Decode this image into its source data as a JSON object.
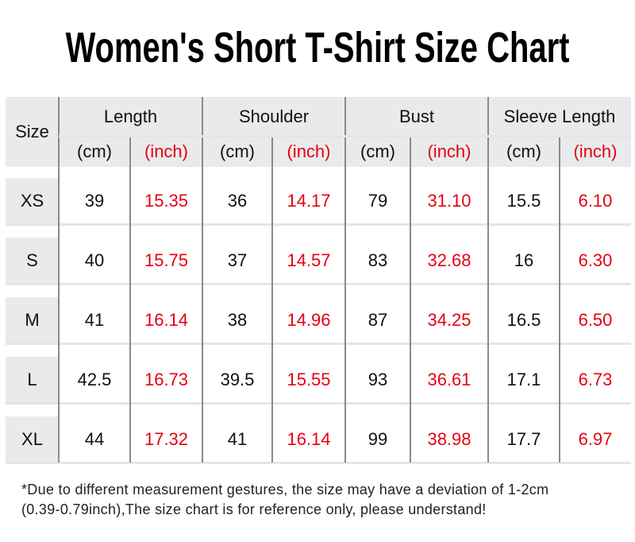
{
  "title": "Women's Short T-Shirt Size Chart",
  "table": {
    "size_header": "Size",
    "groups": [
      "Length",
      "Shoulder",
      "Bust",
      "Sleeve Length"
    ],
    "unit_cm": "(cm)",
    "unit_inch": "(inch)",
    "rows": [
      {
        "size": "XS",
        "values": [
          "39",
          "15.35",
          "36",
          "14.17",
          "79",
          "31.10",
          "15.5",
          "6.10"
        ]
      },
      {
        "size": "S",
        "values": [
          "40",
          "15.75",
          "37",
          "14.57",
          "83",
          "32.68",
          "16",
          "6.30"
        ]
      },
      {
        "size": "M",
        "values": [
          "41",
          "16.14",
          "38",
          "14.96",
          "87",
          "34.25",
          "16.5",
          "6.50"
        ]
      },
      {
        "size": "L",
        "values": [
          "42.5",
          "16.73",
          "39.5",
          "15.55",
          "93",
          "36.61",
          "17.1",
          "6.73"
        ]
      },
      {
        "size": "XL",
        "values": [
          "44",
          "17.32",
          "41",
          "16.14",
          "99",
          "38.98",
          "17.7",
          "6.97"
        ]
      }
    ]
  },
  "note_line1": "*Due to different measurement gestures, the size may have a deviation of 1-2cm",
  "note_line2": "(0.39-0.79inch),The size chart is for reference only, please understand!",
  "colors": {
    "inch_text": "#e60012",
    "header_bg": "#e9eaec",
    "divider": "#8a8a8a"
  }
}
